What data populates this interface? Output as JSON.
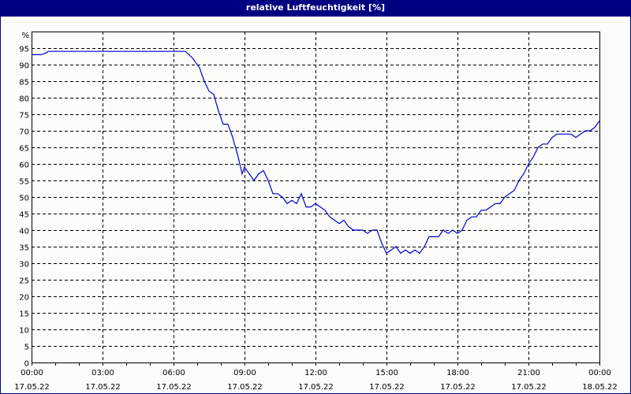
{
  "window": {
    "title": "relative Luftfeuchtigkeit [%]"
  },
  "colors": {
    "titlebar": "#000080",
    "line": "#0000cc",
    "grid": "#000000",
    "background": "#fafdfa"
  },
  "chart_data": {
    "type": "line",
    "title": "relative Luftfeuchtigkeit [%]",
    "xlabel": "",
    "ylabel": "%",
    "ylim": [
      0,
      100
    ],
    "xlim_hours": [
      0,
      24
    ],
    "grid": true,
    "y_ticks": [
      "0",
      "5",
      "10",
      "15",
      "20",
      "25",
      "30",
      "35",
      "40",
      "45",
      "50",
      "55",
      "60",
      "65",
      "70",
      "75",
      "80",
      "85",
      "90",
      "95"
    ],
    "y_unit_label": "%",
    "x_ticks": [
      {
        "time": "00:00",
        "date": "17.05.22"
      },
      {
        "time": "03:00",
        "date": "17.05.22"
      },
      {
        "time": "06:00",
        "date": "17.05.22"
      },
      {
        "time": "09:00",
        "date": "17.05.22"
      },
      {
        "time": "12:00",
        "date": "17.05.22"
      },
      {
        "time": "15:00",
        "date": "17.05.22"
      },
      {
        "time": "18:00",
        "date": "17.05.22"
      },
      {
        "time": "21:00",
        "date": "17.05.22"
      },
      {
        "time": "00:00",
        "date": "18.05.22"
      }
    ],
    "series": [
      {
        "name": "relative Luftfeuchtigkeit",
        "x_hours": [
          0,
          0.4,
          0.6,
          0.7,
          6.5,
          6.8,
          7.1,
          7.3,
          7.5,
          7.7,
          7.9,
          8.1,
          8.3,
          8.5,
          8.7,
          8.9,
          9.0,
          9.2,
          9.4,
          9.6,
          9.8,
          10.0,
          10.2,
          10.4,
          10.6,
          10.8,
          11.0,
          11.2,
          11.4,
          11.6,
          11.8,
          12.0,
          12.2,
          12.4,
          12.6,
          12.8,
          13.0,
          13.2,
          13.4,
          13.6,
          13.8,
          14.0,
          14.2,
          14.4,
          14.6,
          14.8,
          15.0,
          15.2,
          15.4,
          15.6,
          15.8,
          16.0,
          16.2,
          16.4,
          16.6,
          16.8,
          17.0,
          17.2,
          17.4,
          17.6,
          17.8,
          18.0,
          18.2,
          18.4,
          18.6,
          18.8,
          19.0,
          19.2,
          19.4,
          19.6,
          19.8,
          20.0,
          20.2,
          20.4,
          20.6,
          20.8,
          21.0,
          21.2,
          21.4,
          21.6,
          21.8,
          22.0,
          22.2,
          22.4,
          22.6,
          22.8,
          23.0,
          23.2,
          23.4,
          23.6,
          23.8,
          24.0
        ],
        "values": [
          93,
          93,
          93.5,
          94,
          94,
          92,
          89,
          85,
          82,
          81,
          76,
          72,
          72,
          68,
          63,
          57,
          59,
          57,
          55,
          57,
          58,
          55,
          51,
          51,
          50,
          48,
          49,
          48,
          51,
          47,
          47,
          48,
          47,
          46,
          44,
          43,
          42,
          43,
          41,
          40,
          40,
          40,
          39,
          40,
          40,
          36,
          33,
          34,
          35,
          33,
          34,
          33,
          34,
          33,
          35,
          38,
          38,
          38,
          40,
          39,
          40,
          39,
          40,
          43,
          44,
          44,
          46,
          46,
          47,
          48,
          48,
          50,
          51,
          52,
          55,
          57,
          60,
          62,
          65,
          66,
          66,
          68,
          69,
          69,
          69,
          69,
          68,
          69,
          70,
          70,
          71,
          73
        ]
      }
    ]
  }
}
